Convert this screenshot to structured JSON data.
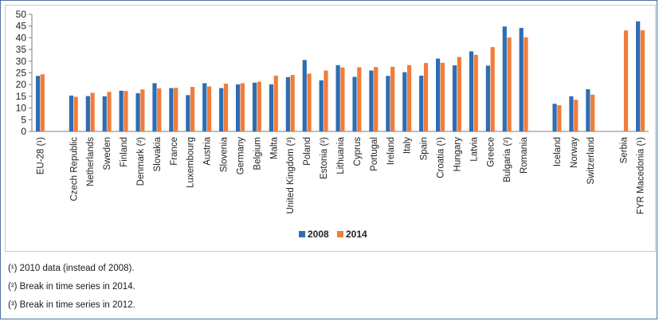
{
  "chart_data": {
    "type": "bar",
    "title": "",
    "xlabel": "",
    "ylabel": "",
    "ylim": [
      0,
      50
    ],
    "yticks": [
      0,
      5,
      10,
      15,
      20,
      25,
      30,
      35,
      40,
      45,
      50
    ],
    "grid": false,
    "legend_position": "bottom-center",
    "groups": [
      [
        "EU-28 (¹)"
      ],
      [
        "Czech Republic",
        "Netherlands",
        "Sweden",
        "Finland",
        "Denmark (²)",
        "Slovakia",
        "France",
        "Luxembourg",
        "Austria",
        "Slovenia",
        "Germany",
        "Belgium",
        "Malta",
        "United Kingdom (³)",
        "Poland",
        "Estonia (²)",
        "Lithuania",
        "Cyprus",
        "Portugal",
        "Ireland",
        "Italy",
        "Spain",
        "Croatia (¹)",
        "Hungary",
        "Latvia",
        "Greece",
        "Bulgaria (²)",
        "Romania"
      ],
      [
        "Iceland",
        "Norway",
        "Switzerland"
      ],
      [
        "Serbia",
        "FYR Macedonia (¹)"
      ]
    ],
    "categories": [
      "EU-28 (¹)",
      "Czech Republic",
      "Netherlands",
      "Sweden",
      "Finland",
      "Denmark (²)",
      "Slovakia",
      "France",
      "Luxembourg",
      "Austria",
      "Slovenia",
      "Germany",
      "Belgium",
      "Malta",
      "United Kingdom (³)",
      "Poland",
      "Estonia (²)",
      "Lithuania",
      "Cyprus",
      "Portugal",
      "Ireland",
      "Italy",
      "Spain",
      "Croatia (¹)",
      "Hungary",
      "Latvia",
      "Greece",
      "Bulgaria (²)",
      "Romania",
      "Iceland",
      "Norway",
      "Switzerland",
      "Serbia",
      "FYR Macedonia (¹)"
    ],
    "series": [
      {
        "name": "2008",
        "color": "#2e6db4",
        "values": [
          23.7,
          15.3,
          15.1,
          15.0,
          17.4,
          16.3,
          20.6,
          18.5,
          15.5,
          20.6,
          18.5,
          20.1,
          20.8,
          20.1,
          23.2,
          30.5,
          21.8,
          28.3,
          23.3,
          26.0,
          23.7,
          25.3,
          23.8,
          31.1,
          28.2,
          34.2,
          28.1,
          44.8,
          44.2,
          11.8,
          15.0,
          18.0,
          null,
          47.0
        ],
        "color_name": "blue"
      },
      {
        "name": "2014",
        "color": "#f07d3a",
        "values": [
          24.4,
          14.8,
          16.5,
          16.9,
          17.3,
          17.9,
          18.4,
          18.6,
          19.0,
          19.2,
          20.4,
          20.6,
          21.2,
          23.8,
          24.1,
          24.7,
          26.0,
          27.3,
          27.4,
          27.5,
          27.6,
          28.3,
          29.2,
          29.3,
          31.8,
          32.7,
          36.0,
          40.1,
          40.2,
          11.2,
          13.5,
          15.7,
          43.1,
          43.2
        ],
        "color_name": "orange"
      }
    ]
  },
  "footnotes": [
    "(¹) 2010 data (instead of 2008).",
    "(²) Break in time series in 2014.",
    "(³) Break in time series in 2012."
  ]
}
